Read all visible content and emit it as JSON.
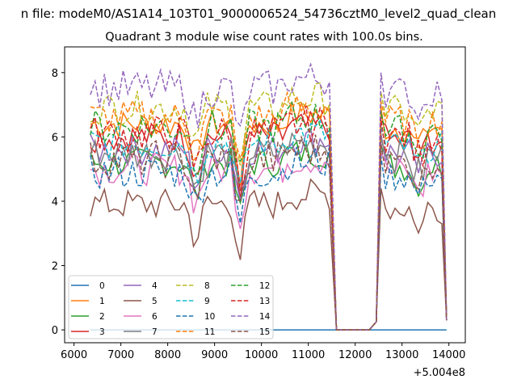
{
  "figure": {
    "suptitle": "n file: modeM0/AS1A14_103T01_9000006524_54736cztM0_level2_quad_clean",
    "title": "Quadrant 3 module wise count rates with 100.0s bins.",
    "offset_label": "+5.004e8"
  },
  "chart_data": {
    "type": "line",
    "x_offset": 500400000,
    "xlim": [
      5800,
      14350
    ],
    "ylim": [
      -0.4,
      8.8
    ],
    "xticks": [
      6000,
      7000,
      8000,
      9000,
      10000,
      11000,
      12000,
      13000,
      14000
    ],
    "yticks": [
      0,
      2,
      4,
      6,
      8
    ],
    "grid": false,
    "legend_location": "lower-left",
    "legend_columns": 4,
    "colors": [
      "#1f77b4",
      "#ff7f0e",
      "#2ca02c",
      "#d62728",
      "#9467bd",
      "#8c564b",
      "#e377c2",
      "#7f7f7f",
      "#bcbd22",
      "#17becf",
      "#1f77b4",
      "#ff7f0e",
      "#2ca02c",
      "#d62728",
      "#9467bd",
      "#8c564b"
    ],
    "series": [
      {
        "name": "0",
        "style": "solid",
        "values": [
          [
            6350,
            0
          ],
          [
            13950,
            0
          ]
        ]
      },
      {
        "name": "1",
        "style": "solid",
        "base": 6.4
      },
      {
        "name": "2",
        "style": "solid",
        "base": 5.2
      },
      {
        "name": "3",
        "style": "solid",
        "base": 6.0
      },
      {
        "name": "4",
        "style": "solid",
        "base": 5.6
      },
      {
        "name": "5",
        "style": "solid",
        "base": 3.9
      },
      {
        "name": "6",
        "style": "solid",
        "base": 5.0
      },
      {
        "name": "7",
        "style": "solid",
        "base": 5.5
      },
      {
        "name": "8",
        "style": "dashed",
        "base": 6.9
      },
      {
        "name": "9",
        "style": "dashed",
        "base": 5.8
      },
      {
        "name": "10",
        "style": "dashed",
        "base": 4.9
      },
      {
        "name": "11",
        "style": "dashed",
        "base": 6.6
      },
      {
        "name": "12",
        "style": "dashed",
        "base": 6.3
      },
      {
        "name": "13",
        "style": "dashed",
        "base": 6.1
      },
      {
        "name": "14",
        "style": "dashed",
        "base": 7.5
      },
      {
        "name": "15",
        "style": "dashed",
        "base": 5.3
      }
    ]
  }
}
